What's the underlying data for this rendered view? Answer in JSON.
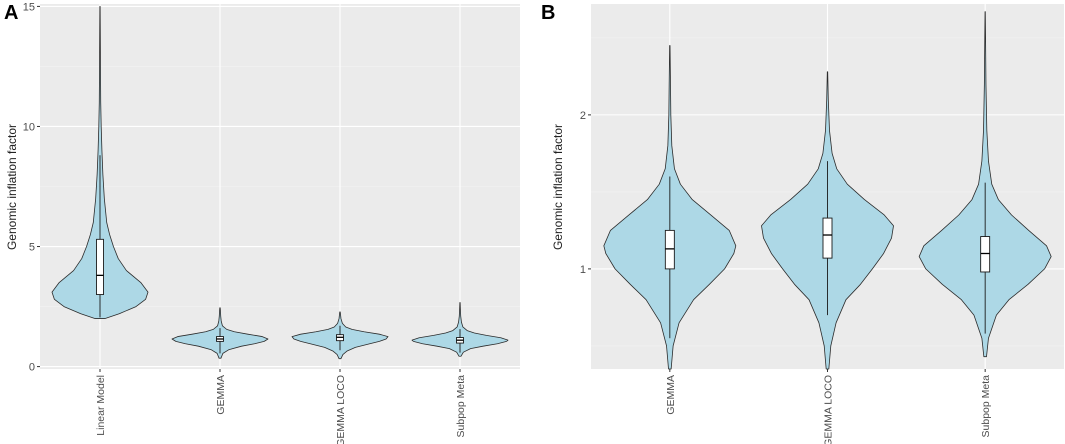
{
  "colors": {
    "panel_bg": "#EBEBEB",
    "grid_major": "#FFFFFF",
    "grid_minor": "#F4F4F4",
    "violin_fill": "#ADD8E6",
    "violin_stroke": "#2B2B2B",
    "box_fill": "#FFFFFF",
    "text": "#4D4D4D",
    "panel_label": "#000000"
  },
  "chart_data": [
    {
      "panel_label": "A",
      "type": "violin",
      "title": "",
      "xlabel": "",
      "ylabel": "Genomic inflation factor",
      "ylim": [
        -0.1,
        15.1
      ],
      "y_ticks": [
        0,
        5,
        10,
        15
      ],
      "y_tick_labels": [
        "0",
        "5",
        "10",
        "15"
      ],
      "grid": true,
      "categories": [
        "Linear Model",
        "GEMMA",
        "GEMMA LOCO",
        "Subpop Meta"
      ],
      "series": [
        {
          "name": "Linear Model",
          "min": 2.0,
          "max": 15.0,
          "q1": 3.0,
          "median": 3.8,
          "q3": 5.3,
          "whisker_low": 2.05,
          "whisker_high": 8.8,
          "density": [
            [
              2.0,
              0.1
            ],
            [
              2.2,
              0.4
            ],
            [
              2.5,
              0.75
            ],
            [
              2.8,
              0.95
            ],
            [
              3.1,
              1.0
            ],
            [
              3.5,
              0.85
            ],
            [
              4.0,
              0.55
            ],
            [
              4.5,
              0.38
            ],
            [
              5.0,
              0.28
            ],
            [
              5.5,
              0.2
            ],
            [
              6.0,
              0.14
            ],
            [
              7.0,
              0.09
            ],
            [
              8.0,
              0.06
            ],
            [
              9.0,
              0.04
            ],
            [
              10.0,
              0.025
            ],
            [
              11.0,
              0.015
            ],
            [
              12.5,
              0.01
            ],
            [
              14.0,
              0.006
            ],
            [
              15.0,
              0.003
            ]
          ]
        },
        {
          "name": "GEMMA",
          "min": 0.35,
          "max": 2.45,
          "q1": 1.05,
          "median": 1.15,
          "q3": 1.25,
          "whisker_low": 0.55,
          "whisker_high": 1.6,
          "density": [
            [
              0.35,
              0.02
            ],
            [
              0.55,
              0.06
            ],
            [
              0.7,
              0.18
            ],
            [
              0.85,
              0.45
            ],
            [
              0.95,
              0.72
            ],
            [
              1.05,
              0.92
            ],
            [
              1.15,
              1.0
            ],
            [
              1.25,
              0.88
            ],
            [
              1.35,
              0.58
            ],
            [
              1.45,
              0.3
            ],
            [
              1.55,
              0.14
            ],
            [
              1.7,
              0.05
            ],
            [
              1.9,
              0.025
            ],
            [
              2.1,
              0.015
            ],
            [
              2.3,
              0.01
            ],
            [
              2.45,
              0.004
            ]
          ]
        },
        {
          "name": "GEMMA LOCO",
          "min": 0.33,
          "max": 2.28,
          "q1": 1.08,
          "median": 1.22,
          "q3": 1.33,
          "whisker_low": 0.68,
          "whisker_high": 1.7,
          "density": [
            [
              0.33,
              0.02
            ],
            [
              0.5,
              0.06
            ],
            [
              0.65,
              0.15
            ],
            [
              0.8,
              0.32
            ],
            [
              0.95,
              0.62
            ],
            [
              1.05,
              0.82
            ],
            [
              1.15,
              0.96
            ],
            [
              1.25,
              1.0
            ],
            [
              1.35,
              0.82
            ],
            [
              1.45,
              0.5
            ],
            [
              1.55,
              0.25
            ],
            [
              1.65,
              0.12
            ],
            [
              1.8,
              0.05
            ],
            [
              2.0,
              0.02
            ],
            [
              2.15,
              0.012
            ],
            [
              2.28,
              0.004
            ]
          ]
        },
        {
          "name": "Subpop Meta",
          "min": 0.43,
          "max": 2.67,
          "q1": 0.98,
          "median": 1.1,
          "q3": 1.21,
          "whisker_low": 0.58,
          "whisker_high": 1.56,
          "density": [
            [
              0.43,
              0.02
            ],
            [
              0.6,
              0.07
            ],
            [
              0.75,
              0.22
            ],
            [
              0.85,
              0.48
            ],
            [
              0.95,
              0.78
            ],
            [
              1.05,
              0.97
            ],
            [
              1.1,
              1.0
            ],
            [
              1.2,
              0.85
            ],
            [
              1.3,
              0.55
            ],
            [
              1.4,
              0.3
            ],
            [
              1.5,
              0.15
            ],
            [
              1.65,
              0.06
            ],
            [
              1.85,
              0.03
            ],
            [
              2.1,
              0.015
            ],
            [
              2.4,
              0.008
            ],
            [
              2.67,
              0.003
            ]
          ]
        }
      ]
    },
    {
      "panel_label": "B",
      "type": "violin",
      "title": "",
      "xlabel": "",
      "ylabel": "Genomic inflation factor",
      "ylim": [
        0.35,
        2.72
      ],
      "y_ticks": [
        1,
        2
      ],
      "y_tick_labels": [
        "1",
        "2"
      ],
      "grid": true,
      "categories": [
        "GEMMA",
        "GEMMA LOCO",
        "Subpop Meta"
      ],
      "series": [
        {
          "name": "GEMMA",
          "min": 0.35,
          "max": 2.45,
          "q1": 1.0,
          "median": 1.13,
          "q3": 1.25,
          "whisker_low": 0.55,
          "whisker_high": 1.6,
          "density": [
            [
              0.35,
              0.02
            ],
            [
              0.5,
              0.05
            ],
            [
              0.65,
              0.14
            ],
            [
              0.8,
              0.36
            ],
            [
              0.9,
              0.6
            ],
            [
              1.0,
              0.83
            ],
            [
              1.1,
              0.97
            ],
            [
              1.15,
              1.0
            ],
            [
              1.25,
              0.9
            ],
            [
              1.35,
              0.62
            ],
            [
              1.45,
              0.34
            ],
            [
              1.55,
              0.16
            ],
            [
              1.65,
              0.07
            ],
            [
              1.8,
              0.03
            ],
            [
              2.0,
              0.015
            ],
            [
              2.2,
              0.01
            ],
            [
              2.45,
              0.003
            ]
          ]
        },
        {
          "name": "GEMMA LOCO",
          "min": 0.35,
          "max": 2.28,
          "q1": 1.07,
          "median": 1.22,
          "q3": 1.33,
          "whisker_low": 0.7,
          "whisker_high": 1.7,
          "density": [
            [
              0.35,
              0.02
            ],
            [
              0.5,
              0.05
            ],
            [
              0.65,
              0.13
            ],
            [
              0.8,
              0.28
            ],
            [
              0.9,
              0.5
            ],
            [
              1.0,
              0.68
            ],
            [
              1.1,
              0.85
            ],
            [
              1.2,
              0.97
            ],
            [
              1.28,
              1.0
            ],
            [
              1.35,
              0.86
            ],
            [
              1.45,
              0.56
            ],
            [
              1.55,
              0.3
            ],
            [
              1.65,
              0.14
            ],
            [
              1.75,
              0.07
            ],
            [
              1.9,
              0.03
            ],
            [
              2.1,
              0.012
            ],
            [
              2.28,
              0.003
            ]
          ]
        },
        {
          "name": "Subpop Meta",
          "min": 0.43,
          "max": 2.67,
          "q1": 0.98,
          "median": 1.1,
          "q3": 1.21,
          "whisker_low": 0.58,
          "whisker_high": 1.56,
          "density": [
            [
              0.43,
              0.02
            ],
            [
              0.55,
              0.05
            ],
            [
              0.7,
              0.17
            ],
            [
              0.8,
              0.36
            ],
            [
              0.9,
              0.65
            ],
            [
              1.0,
              0.9
            ],
            [
              1.08,
              1.0
            ],
            [
              1.15,
              0.93
            ],
            [
              1.25,
              0.66
            ],
            [
              1.35,
              0.4
            ],
            [
              1.45,
              0.2
            ],
            [
              1.55,
              0.1
            ],
            [
              1.7,
              0.05
            ],
            [
              1.9,
              0.025
            ],
            [
              2.2,
              0.012
            ],
            [
              2.5,
              0.006
            ],
            [
              2.67,
              0.002
            ]
          ]
        }
      ]
    }
  ]
}
